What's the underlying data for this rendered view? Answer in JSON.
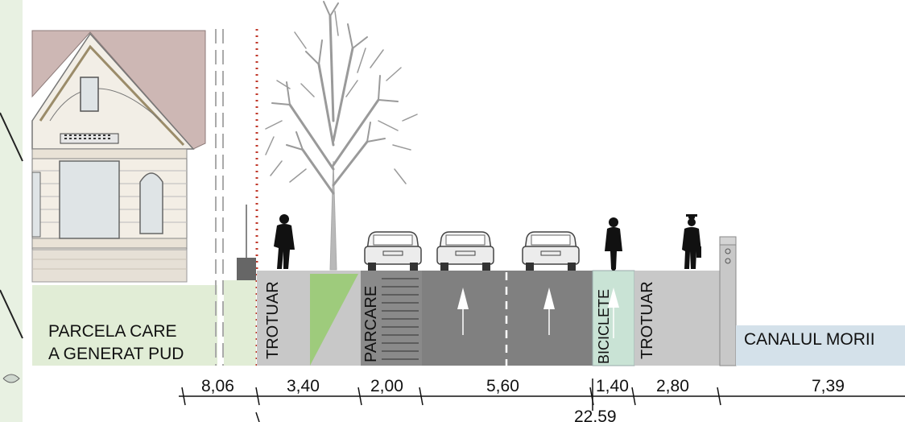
{
  "parcel_label_line1": "PARCELA CARE",
  "parcel_label_line2": "A GENERAT PUD",
  "zones": {
    "sidewalk_left": "TROTUAR",
    "parking": "PARCARE",
    "bike_lane": "BICICLETE",
    "sidewalk_right": "TROTUAR",
    "canal": "CANALUL MORII"
  },
  "dimensions": {
    "d1": "8,06",
    "d2": "3,40",
    "d3": "2,00",
    "d4": "5,60",
    "d5": "1,40",
    "d6": "2,80",
    "d7": "7,39",
    "total": "22,59"
  },
  "colors": {
    "parcel_fill": "#e1edd6",
    "sidewalk": "#c8c8c8",
    "road": "#808080",
    "parking": "#8a8a8a",
    "bike_lane": "#c9e3d5",
    "green_strip": "#9ecb7c",
    "canal": "#d4e1ea",
    "roof": "#cdb7b4",
    "property_line": "#c0392b"
  }
}
